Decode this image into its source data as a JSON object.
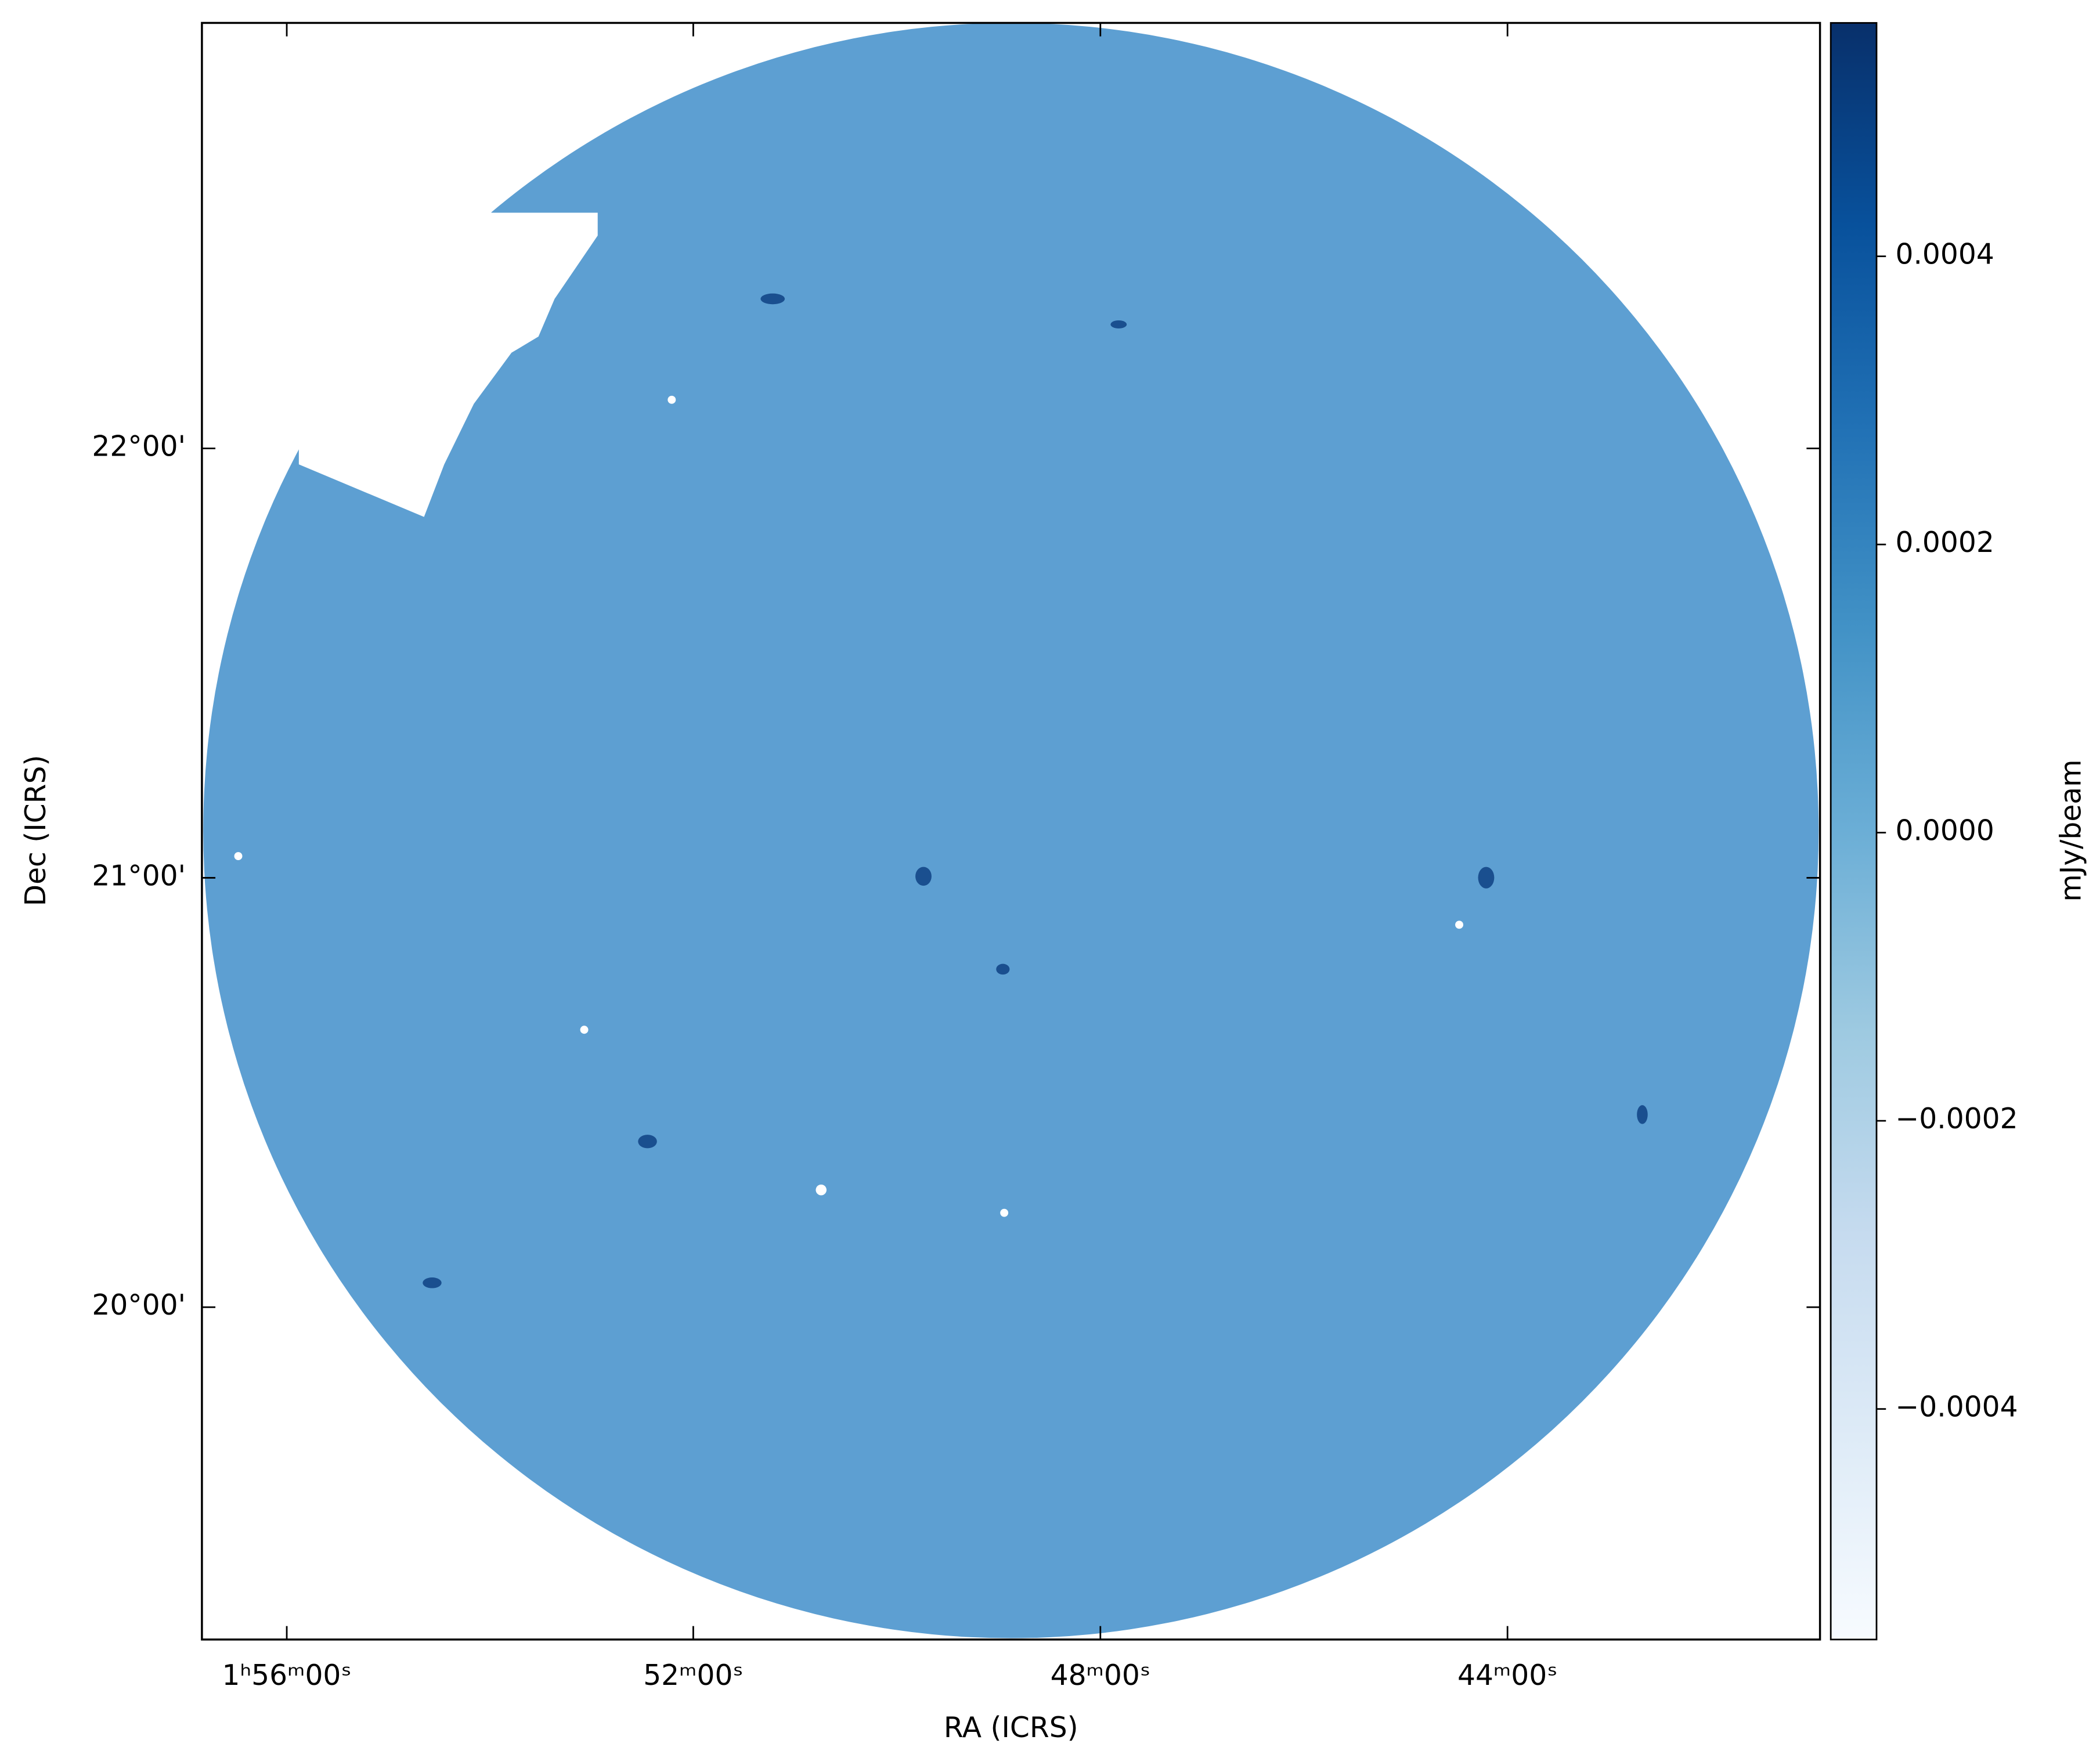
{
  "chart_data": {
    "type": "image",
    "xlabel": "RA (ICRS)",
    "ylabel": "Dec (ICRS)",
    "xlim": [
      1.9472,
      1.6821
    ],
    "ylim": [
      19.226,
      22.991
    ],
    "xticks": [
      {
        "value": 1.9333,
        "label": "1ʰ56ᵐ00ˢ"
      },
      {
        "value": 1.8667,
        "label": "52ᵐ00ˢ"
      },
      {
        "value": 1.8,
        "label": "48ᵐ00ˢ"
      },
      {
        "value": 1.7333,
        "label": "44ᵐ00ˢ"
      }
    ],
    "yticks": [
      {
        "value": 20,
        "label": "20°00'"
      },
      {
        "value": 21,
        "label": "21°00'"
      },
      {
        "value": 22,
        "label": "22°00'"
      }
    ],
    "colorbar": {
      "label": "mJy/beam",
      "clim": [
        -0.00056,
        0.000562
      ],
      "ticks": [
        {
          "value": -0.0004,
          "label": "−0.0004"
        },
        {
          "value": -0.0002,
          "label": "−0.0002"
        },
        {
          "value": 0,
          "label": "0.0000"
        },
        0.0002,
        0.0004
      ],
      "colormap": [
        "#f7fbff",
        "#deebf7",
        "#c6dbef",
        "#9ecae1",
        "#6baed6",
        "#4292c6",
        "#2171b5",
        "#08519c",
        "#08306b"
      ]
    }
  }
}
